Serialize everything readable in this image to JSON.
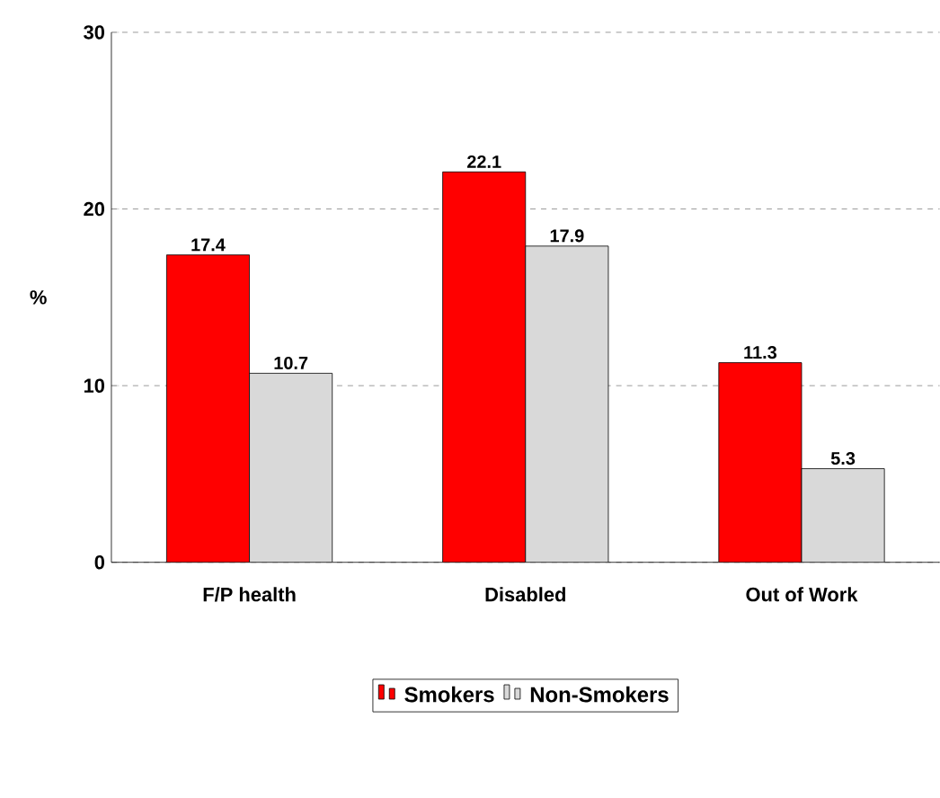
{
  "chart_data": {
    "type": "bar",
    "ylabel": "%",
    "categories": [
      "F/P health",
      "Disabled",
      "Out of Work"
    ],
    "series": [
      {
        "name": "Smokers",
        "color": "#ff0000",
        "values": [
          17.4,
          22.1,
          11.3
        ]
      },
      {
        "name": "Non-Smokers",
        "color": "#d9d9d9",
        "values": [
          10.7,
          17.9,
          5.3
        ]
      }
    ],
    "ylim": [
      0,
      30
    ],
    "yticks": [
      0,
      10,
      20,
      30
    ],
    "grid": "y",
    "legend": "bottom",
    "data_labels": true
  }
}
